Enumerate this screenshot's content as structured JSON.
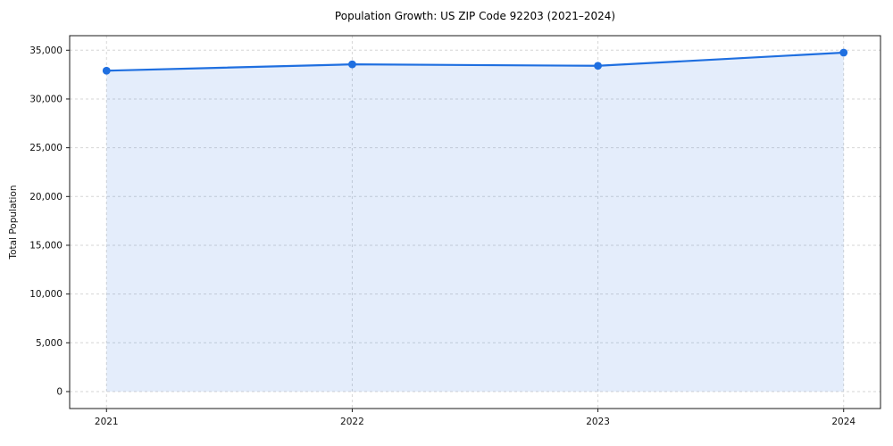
{
  "chart_data": {
    "type": "area",
    "title": "Population Growth: US ZIP Code 92203 (2021–2024)",
    "xlabel": "",
    "ylabel": "Total Population",
    "x": [
      2021,
      2022,
      2023,
      2024
    ],
    "xtick_labels": [
      "2021",
      "2022",
      "2023",
      "2024"
    ],
    "series": [
      {
        "name": "Total Population",
        "values": [
          32900,
          33550,
          33400,
          34750
        ]
      }
    ],
    "yticks": [
      0,
      5000,
      10000,
      15000,
      20000,
      25000,
      30000,
      35000
    ],
    "ytick_labels": [
      "0",
      "5,000",
      "10,000",
      "15,000",
      "20,000",
      "25,000",
      "30,000",
      "35,000"
    ],
    "ylim": [
      -1740,
      36490
    ],
    "grid": true,
    "legend": "none",
    "line_color": "#1f6fe0",
    "fill_opacity": 0.12,
    "axis_color": "#1a1a1a"
  }
}
